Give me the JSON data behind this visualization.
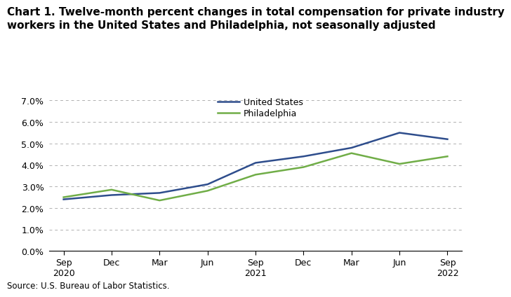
{
  "title_line1": "Chart 1. Twelve-month percent changes in total compensation for private industry",
  "title_line2": "workers in the United States and Philadelphia, not seasonally adjusted",
  "source": "Source: U.S. Bureau of Labor Statistics.",
  "x_labels": [
    "Sep\n2020",
    "Dec",
    "Mar",
    "Jun",
    "Sep\n2021",
    "Dec",
    "Mar",
    "Jun",
    "Sep\n2022"
  ],
  "us_values": [
    2.4,
    2.6,
    2.7,
    3.1,
    4.1,
    4.4,
    4.8,
    5.5,
    5.2
  ],
  "philly_values": [
    2.5,
    2.85,
    2.35,
    2.8,
    3.55,
    3.9,
    4.55,
    4.05,
    4.4
  ],
  "us_color": "#2e4d8c",
  "philly_color": "#70ad47",
  "us_label": "United States",
  "philly_label": "Philadelphia",
  "ylim": [
    0.0,
    7.0
  ],
  "yticks": [
    0.0,
    1.0,
    2.0,
    3.0,
    4.0,
    5.0,
    6.0,
    7.0
  ],
  "line_width": 1.8,
  "background_color": "#ffffff",
  "grid_color": "#b0b0b0",
  "legend_fontsize": 9,
  "title_fontsize": 11,
  "tick_fontsize": 9,
  "source_fontsize": 8.5
}
